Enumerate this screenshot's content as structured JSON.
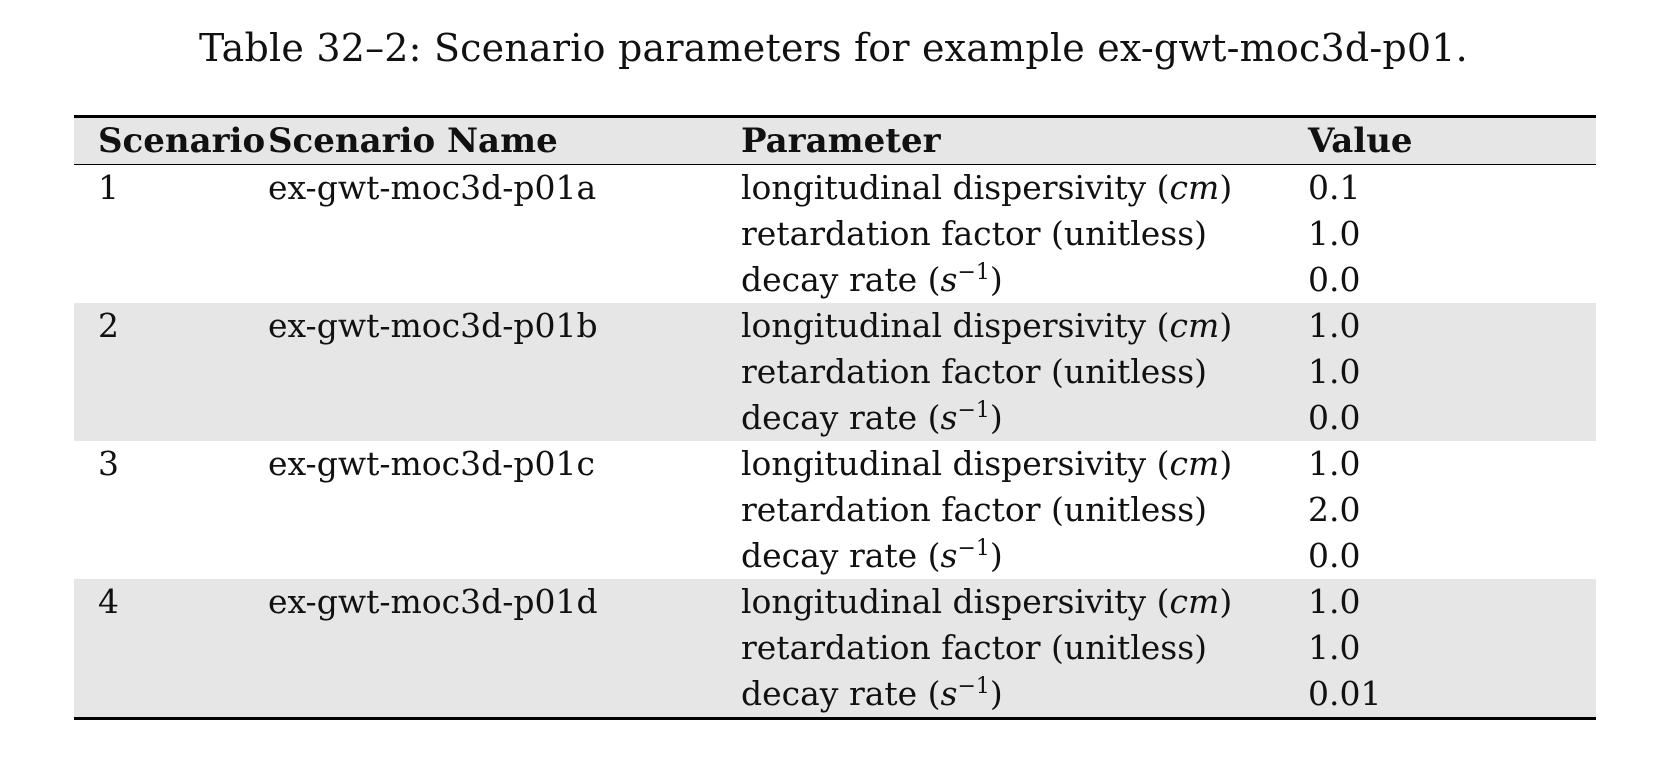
{
  "caption": "Table 32–2: Scenario parameters for example ex-gwt-moc3d-p01.",
  "headers": {
    "scenario": "Scenario",
    "scenario_name": "Scenario Name",
    "parameter": "Parameter",
    "value": "Value"
  },
  "parameter_labels": {
    "dispersivity": {
      "text": "longitudinal dispersivity (",
      "unit": "cm",
      "close": ")"
    },
    "retardation": {
      "text": "retardation factor (unitless)"
    },
    "decay": {
      "text": "decay rate (",
      "base": "s",
      "exponent": "−1",
      "close": ")"
    }
  },
  "scenarios": [
    {
      "id": "1",
      "name": "ex-gwt-moc3d-p01a",
      "values": [
        "0.1",
        "1.0",
        "0.0"
      ]
    },
    {
      "id": "2",
      "name": "ex-gwt-moc3d-p01b",
      "values": [
        "1.0",
        "1.0",
        "0.0"
      ]
    },
    {
      "id": "3",
      "name": "ex-gwt-moc3d-p01c",
      "values": [
        "1.0",
        "2.0",
        "0.0"
      ]
    },
    {
      "id": "4",
      "name": "ex-gwt-moc3d-p01d",
      "values": [
        "1.0",
        "1.0",
        "0.01"
      ]
    }
  ],
  "colors": {
    "shade": "#e6e6e6",
    "rule": "#000000"
  }
}
